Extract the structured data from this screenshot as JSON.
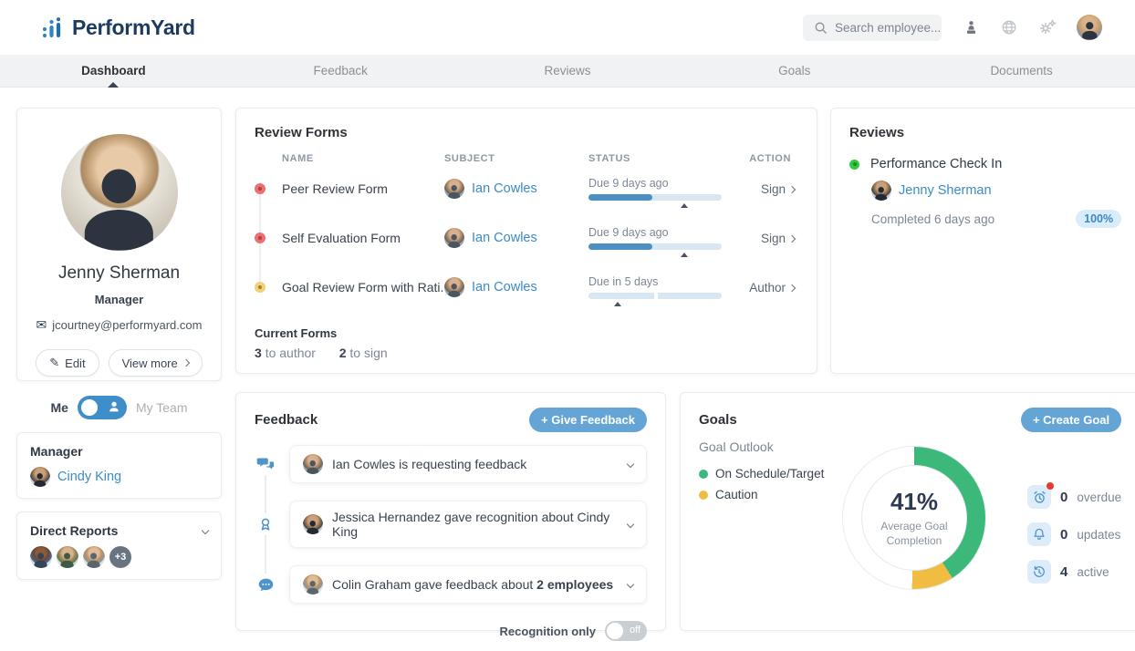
{
  "header": {
    "logo_text": "PerformYard",
    "search_placeholder": "Search employee..."
  },
  "nav": {
    "tabs": [
      {
        "label": "Dashboard",
        "active": true
      },
      {
        "label": "Feedback",
        "active": false
      },
      {
        "label": "Reviews",
        "active": false
      },
      {
        "label": "Goals",
        "active": false
      },
      {
        "label": "Documents",
        "active": false
      }
    ]
  },
  "profile": {
    "name": "Jenny Sherman",
    "role": "Manager",
    "email": "jcourtney@performyard.com",
    "edit_label": "Edit",
    "view_more_label": "View more"
  },
  "scope_toggle": {
    "left": "Me",
    "right": "My Team"
  },
  "manager_card": {
    "title": "Manager",
    "name": "Cindy King"
  },
  "direct_reports": {
    "title": "Direct Reports",
    "extra_count": "+3"
  },
  "review_forms": {
    "title": "Review Forms",
    "columns": {
      "name": "NAME",
      "subject": "SUBJECT",
      "status": "STATUS",
      "action": "ACTION"
    },
    "rows": [
      {
        "dot_color": "#ee6f6f",
        "name": "Peer Review Form",
        "subject": "Ian Cowles",
        "due": "Due 9 days ago",
        "progress_pct": 48,
        "marker_pct": 72,
        "action": "Sign",
        "split_track": false
      },
      {
        "dot_color": "#ee6f6f",
        "name": "Self Evaluation Form",
        "subject": "Ian Cowles",
        "due": "Due 9 days ago",
        "progress_pct": 48,
        "marker_pct": 72,
        "action": "Sign",
        "split_track": false
      },
      {
        "dot_color": "#f2d272",
        "name": "Goal Review Form with Rati...",
        "subject": "Ian Cowles",
        "due": "Due in 5 days",
        "progress_pct": 0,
        "marker_pct": 22,
        "action": "Author",
        "split_track": true
      }
    ],
    "current_forms": {
      "title": "Current Forms",
      "author_count": "3",
      "author_label": "to author",
      "sign_count": "2",
      "sign_label": "to sign"
    }
  },
  "reviews": {
    "title": "Reviews",
    "item": {
      "dot_color": "#31c93e",
      "name": "Performance Check In",
      "person": "Jenny Sherman",
      "status": "Completed 6 days ago",
      "percent": "100%"
    }
  },
  "feedback": {
    "title": "Feedback",
    "button_label": "+ Give Feedback",
    "items": [
      {
        "icon": "chat-bubbles",
        "text": "Ian Cowles is requesting feedback"
      },
      {
        "icon": "recognition-medal",
        "text": "Jessica Hernandez gave recognition about Cindy King"
      },
      {
        "icon": "speech-dots",
        "text_prefix": "Colin Graham gave feedback about ",
        "text_bold": "2 employees"
      }
    ],
    "recognition_toggle": {
      "label": "Recognition only",
      "state": "off"
    }
  },
  "goals": {
    "title": "Goals",
    "button_label": "+ Create Goal",
    "outlook_label": "Goal Outlook",
    "legend": [
      {
        "label": "On Schedule/Target",
        "color": "#3cb87a"
      },
      {
        "label": "Caution",
        "color": "#f0bc42"
      }
    ],
    "donut": {
      "percent": "41%",
      "caption": "Average Goal Completion",
      "green_pct": 41,
      "yellow_pct": 9.5,
      "track_color": "#ffffff"
    },
    "stats": [
      {
        "icon": "alarm-clock",
        "value": "0",
        "label": "overdue",
        "has_red_dot": true
      },
      {
        "icon": "bell",
        "value": "0",
        "label": "updates",
        "has_red_dot": false
      },
      {
        "icon": "history-clock",
        "value": "4",
        "label": "active",
        "has_red_dot": false
      }
    ]
  },
  "colors": {
    "accent_blue": "#64a5d6",
    "link_blue": "#3a8bc8",
    "progress_fill": "#4a90c2",
    "progress_track": "#d9e7f3",
    "badge_bg": "#d9ecf9",
    "badge_text": "#3d88c4",
    "status_red": "#ee6f6f",
    "status_yellow": "#f2d272",
    "status_green": "#31c93e"
  }
}
